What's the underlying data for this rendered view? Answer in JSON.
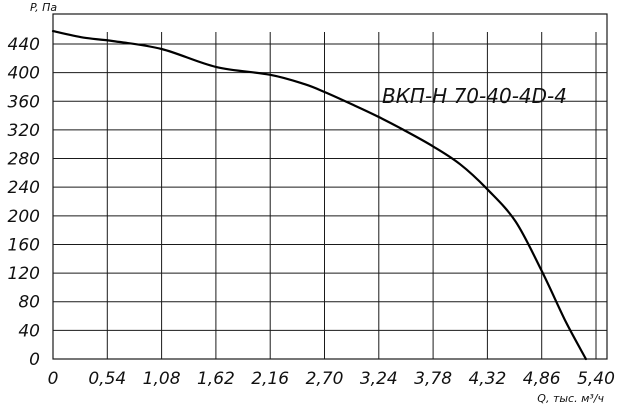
{
  "chart_data": {
    "type": "line",
    "title": "ВКП-Н 70-40-4D-4",
    "xlabel": "Q, тыс. м³/ч",
    "ylabel": "P, Па",
    "xlim": [
      0,
      5.4
    ],
    "ylim": [
      0,
      460
    ],
    "x_ticks": [
      "0",
      "0,54",
      "1,08",
      "1,62",
      "2,16",
      "2,70",
      "3,24",
      "3,78",
      "4,32",
      "4,86",
      "5,40"
    ],
    "y_ticks": [
      "0",
      "40",
      "80",
      "120",
      "160",
      "200",
      "240",
      "280",
      "320",
      "360",
      "400",
      "440"
    ],
    "grid": true,
    "series": [
      {
        "x": [
          0,
          0.3,
          0.6,
          1.08,
          1.62,
          2.16,
          2.5,
          2.7,
          3.0,
          3.24,
          3.5,
          3.78,
          4.05,
          4.32,
          4.6,
          4.86,
          5.1,
          5.3
        ],
        "y": [
          458,
          449,
          444,
          433,
          408,
          397,
          384,
          373,
          354,
          338,
          319,
          297,
          272,
          237,
          192,
          123,
          52,
          0
        ]
      }
    ]
  }
}
